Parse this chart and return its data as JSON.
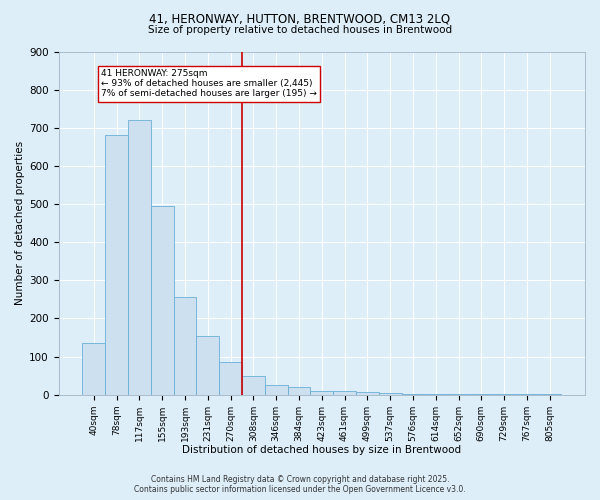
{
  "title_line1": "41, HERONWAY, HUTTON, BRENTWOOD, CM13 2LQ",
  "title_line2": "Size of property relative to detached houses in Brentwood",
  "xlabel": "Distribution of detached houses by size in Brentwood",
  "ylabel": "Number of detached properties",
  "bar_labels": [
    "40sqm",
    "78sqm",
    "117sqm",
    "155sqm",
    "193sqm",
    "231sqm",
    "270sqm",
    "308sqm",
    "346sqm",
    "384sqm",
    "423sqm",
    "461sqm",
    "499sqm",
    "537sqm",
    "576sqm",
    "614sqm",
    "652sqm",
    "690sqm",
    "729sqm",
    "767sqm",
    "805sqm"
  ],
  "bar_values": [
    135,
    680,
    720,
    495,
    255,
    155,
    85,
    50,
    25,
    20,
    10,
    10,
    8,
    5,
    3,
    3,
    2,
    1,
    1,
    1,
    1
  ],
  "bar_color": "#cce0f0",
  "bar_edge_color": "#6aaed6",
  "vline_color": "#cc0000",
  "annotation_text": "41 HERONWAY: 275sqm\n← 93% of detached houses are smaller (2,445)\n7% of semi-detached houses are larger (195) →",
  "annotation_box_color": "#ffffff",
  "annotation_box_edge": "#cc0000",
  "footer_line1": "Contains HM Land Registry data © Crown copyright and database right 2025.",
  "footer_line2": "Contains public sector information licensed under the Open Government Licence v3.0.",
  "background_color": "#ddeef8",
  "plot_background": "#ddeef8",
  "grid_color": "#ffffff",
  "ylim": [
    0,
    900
  ],
  "yticks": [
    0,
    100,
    200,
    300,
    400,
    500,
    600,
    700,
    800,
    900
  ]
}
